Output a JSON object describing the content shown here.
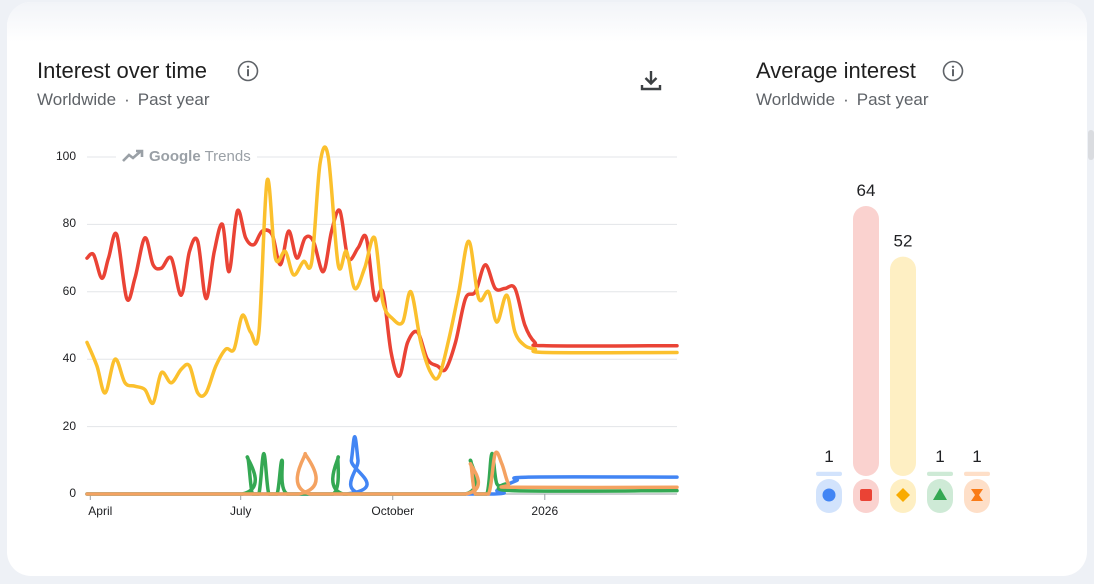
{
  "interest_over_time": {
    "title": "Interest over time",
    "region": "Worldwide",
    "separator": "·",
    "period": "Past year",
    "watermark": {
      "brand": "Google",
      "product": "Trends"
    }
  },
  "average_interest": {
    "title": "Average interest",
    "region": "Worldwide",
    "separator": "·",
    "period": "Past year",
    "bars": [
      {
        "value": 1,
        "label": "1",
        "color": "#4285f4",
        "light": "#d2e3fc",
        "marker": "circle"
      },
      {
        "value": 64,
        "label": "64",
        "color": "#ea4335",
        "light": "#fad2cf",
        "marker": "square"
      },
      {
        "value": 52,
        "label": "52",
        "color": "#f9ab00",
        "light": "#feefc3",
        "marker": "diamond"
      },
      {
        "value": 1,
        "label": "1",
        "color": "#34a853",
        "light": "#ceead6",
        "marker": "triangle"
      },
      {
        "value": 1,
        "label": "1",
        "color": "#fa7b17",
        "light": "#fedfc8",
        "marker": "hourglass"
      }
    ]
  },
  "chart_data": {
    "type": "line",
    "title": "Interest over time",
    "grid": true,
    "ylim": [
      0,
      100
    ],
    "yticks": [
      "100",
      "80",
      "60",
      "40",
      "20",
      "0"
    ],
    "xticks": [
      "April",
      "July",
      "October",
      "2026"
    ],
    "x_range": [
      "2025-03-30",
      "2026-03-22"
    ],
    "series": [
      {
        "color": "#ea4335",
        "points": [
          [
            "2025-03-30",
            70
          ],
          [
            "2025-04-03",
            71
          ],
          [
            "2025-04-08",
            64
          ],
          [
            "2025-04-12",
            70
          ],
          [
            "2025-04-17",
            77
          ],
          [
            "2025-04-23",
            58
          ],
          [
            "2025-04-28",
            64
          ],
          [
            "2025-05-04",
            76
          ],
          [
            "2025-05-09",
            68
          ],
          [
            "2025-05-14",
            67
          ],
          [
            "2025-05-20",
            70
          ],
          [
            "2025-05-26",
            59
          ],
          [
            "2025-05-31",
            72
          ],
          [
            "2025-06-05",
            75
          ],
          [
            "2025-06-10",
            58
          ],
          [
            "2025-06-15",
            72
          ],
          [
            "2025-06-20",
            80
          ],
          [
            "2025-06-24",
            66
          ],
          [
            "2025-06-29",
            84
          ],
          [
            "2025-07-04",
            76
          ],
          [
            "2025-07-09",
            74
          ],
          [
            "2025-07-14",
            78
          ],
          [
            "2025-07-20",
            77
          ],
          [
            "2025-07-25",
            68
          ],
          [
            "2025-07-30",
            78
          ],
          [
            "2025-08-04",
            70
          ],
          [
            "2025-08-09",
            76
          ],
          [
            "2025-08-14",
            75
          ],
          [
            "2025-08-20",
            66
          ],
          [
            "2025-08-25",
            78
          ],
          [
            "2025-08-30",
            84
          ],
          [
            "2025-09-04",
            70
          ],
          [
            "2025-09-10",
            73
          ],
          [
            "2025-09-15",
            76
          ],
          [
            "2025-09-20",
            58
          ],
          [
            "2025-09-25",
            60
          ],
          [
            "2025-09-30",
            42
          ],
          [
            "2025-10-05",
            35
          ],
          [
            "2025-10-10",
            45
          ],
          [
            "2025-10-16",
            48
          ],
          [
            "2025-10-22",
            40
          ],
          [
            "2025-10-28",
            38
          ],
          [
            "2025-11-02",
            37
          ],
          [
            "2025-11-08",
            45
          ],
          [
            "2025-11-14",
            58
          ],
          [
            "2025-11-20",
            60
          ],
          [
            "2025-11-26",
            68
          ],
          [
            "2025-12-02",
            61
          ],
          [
            "2025-12-08",
            61
          ],
          [
            "2025-12-14",
            61
          ],
          [
            "2025-12-20",
            50
          ],
          [
            "2025-12-26",
            45
          ],
          [
            "2026-01-02",
            44
          ],
          [
            "2026-03-22",
            44
          ]
        ]
      },
      {
        "color": "#fbc02d",
        "points": [
          [
            "2025-03-30",
            45
          ],
          [
            "2025-04-05",
            38
          ],
          [
            "2025-04-10",
            30
          ],
          [
            "2025-04-16",
            40
          ],
          [
            "2025-04-22",
            33
          ],
          [
            "2025-04-28",
            32
          ],
          [
            "2025-05-04",
            31
          ],
          [
            "2025-05-09",
            27
          ],
          [
            "2025-05-14",
            36
          ],
          [
            "2025-05-20",
            33
          ],
          [
            "2025-05-26",
            37
          ],
          [
            "2025-05-31",
            38
          ],
          [
            "2025-06-05",
            30
          ],
          [
            "2025-06-10",
            30
          ],
          [
            "2025-06-16",
            38
          ],
          [
            "2025-06-22",
            43
          ],
          [
            "2025-06-27",
            43
          ],
          [
            "2025-07-02",
            53
          ],
          [
            "2025-07-07",
            48
          ],
          [
            "2025-07-12",
            48
          ],
          [
            "2025-07-17",
            93
          ],
          [
            "2025-07-22",
            70
          ],
          [
            "2025-07-28",
            72
          ],
          [
            "2025-08-02",
            65
          ],
          [
            "2025-08-08",
            69
          ],
          [
            "2025-08-13",
            69
          ],
          [
            "2025-08-18",
            98
          ],
          [
            "2025-08-23",
            100
          ],
          [
            "2025-08-29",
            68
          ],
          [
            "2025-09-03",
            72
          ],
          [
            "2025-09-08",
            61
          ],
          [
            "2025-09-14",
            67
          ],
          [
            "2025-09-20",
            76
          ],
          [
            "2025-09-25",
            57
          ],
          [
            "2025-10-01",
            52
          ],
          [
            "2025-10-07",
            51
          ],
          [
            "2025-10-12",
            60
          ],
          [
            "2025-10-18",
            45
          ],
          [
            "2025-10-24",
            36
          ],
          [
            "2025-10-29",
            35
          ],
          [
            "2025-11-04",
            46
          ],
          [
            "2025-11-10",
            60
          ],
          [
            "2025-11-16",
            75
          ],
          [
            "2025-11-22",
            58
          ],
          [
            "2025-11-28",
            60
          ],
          [
            "2025-12-03",
            51
          ],
          [
            "2025-12-09",
            59
          ],
          [
            "2025-12-14",
            48
          ],
          [
            "2025-12-20",
            44
          ],
          [
            "2025-12-26",
            43
          ],
          [
            "2026-01-02",
            42
          ],
          [
            "2026-03-22",
            42
          ]
        ]
      },
      {
        "color": "#4285f4",
        "points": [
          [
            "2025-03-30",
            0
          ],
          [
            "2025-09-03",
            0
          ],
          [
            "2025-09-06",
            10
          ],
          [
            "2025-09-08",
            17
          ],
          [
            "2025-09-10",
            10
          ],
          [
            "2025-09-12",
            0
          ],
          [
            "2025-12-01",
            0
          ],
          [
            "2025-12-03",
            1
          ],
          [
            "2025-12-06",
            2
          ],
          [
            "2025-12-15",
            4
          ],
          [
            "2025-12-22",
            5
          ],
          [
            "2026-03-22",
            5
          ]
        ]
      },
      {
        "color": "#34a853",
        "points": [
          [
            "2025-03-30",
            0
          ],
          [
            "2025-07-02",
            0
          ],
          [
            "2025-07-05",
            11
          ],
          [
            "2025-07-08",
            0
          ],
          [
            "2025-07-12",
            0
          ],
          [
            "2025-07-15",
            12
          ],
          [
            "2025-07-18",
            0
          ],
          [
            "2025-07-23",
            0
          ],
          [
            "2025-07-26",
            10
          ],
          [
            "2025-07-29",
            0
          ],
          [
            "2025-08-26",
            0
          ],
          [
            "2025-08-29",
            11
          ],
          [
            "2025-09-01",
            0
          ],
          [
            "2025-11-14",
            0
          ],
          [
            "2025-11-17",
            10
          ],
          [
            "2025-11-20",
            0
          ],
          [
            "2025-11-27",
            0
          ],
          [
            "2025-11-30",
            12
          ],
          [
            "2025-12-03",
            3
          ],
          [
            "2025-12-09",
            3
          ],
          [
            "2025-12-12",
            1
          ],
          [
            "2026-03-22",
            1
          ]
        ]
      },
      {
        "color": "#f4a261",
        "points": [
          [
            "2025-03-30",
            0
          ],
          [
            "2025-08-05",
            0
          ],
          [
            "2025-08-09",
            12
          ],
          [
            "2025-08-12",
            0
          ],
          [
            "2025-11-14",
            0
          ],
          [
            "2025-11-17",
            9
          ],
          [
            "2025-11-20",
            0
          ],
          [
            "2025-11-28",
            0
          ],
          [
            "2025-12-02",
            12
          ],
          [
            "2025-12-06",
            9
          ],
          [
            "2025-12-10",
            3
          ],
          [
            "2025-12-14",
            2
          ],
          [
            "2026-03-22",
            2
          ]
        ]
      }
    ]
  }
}
